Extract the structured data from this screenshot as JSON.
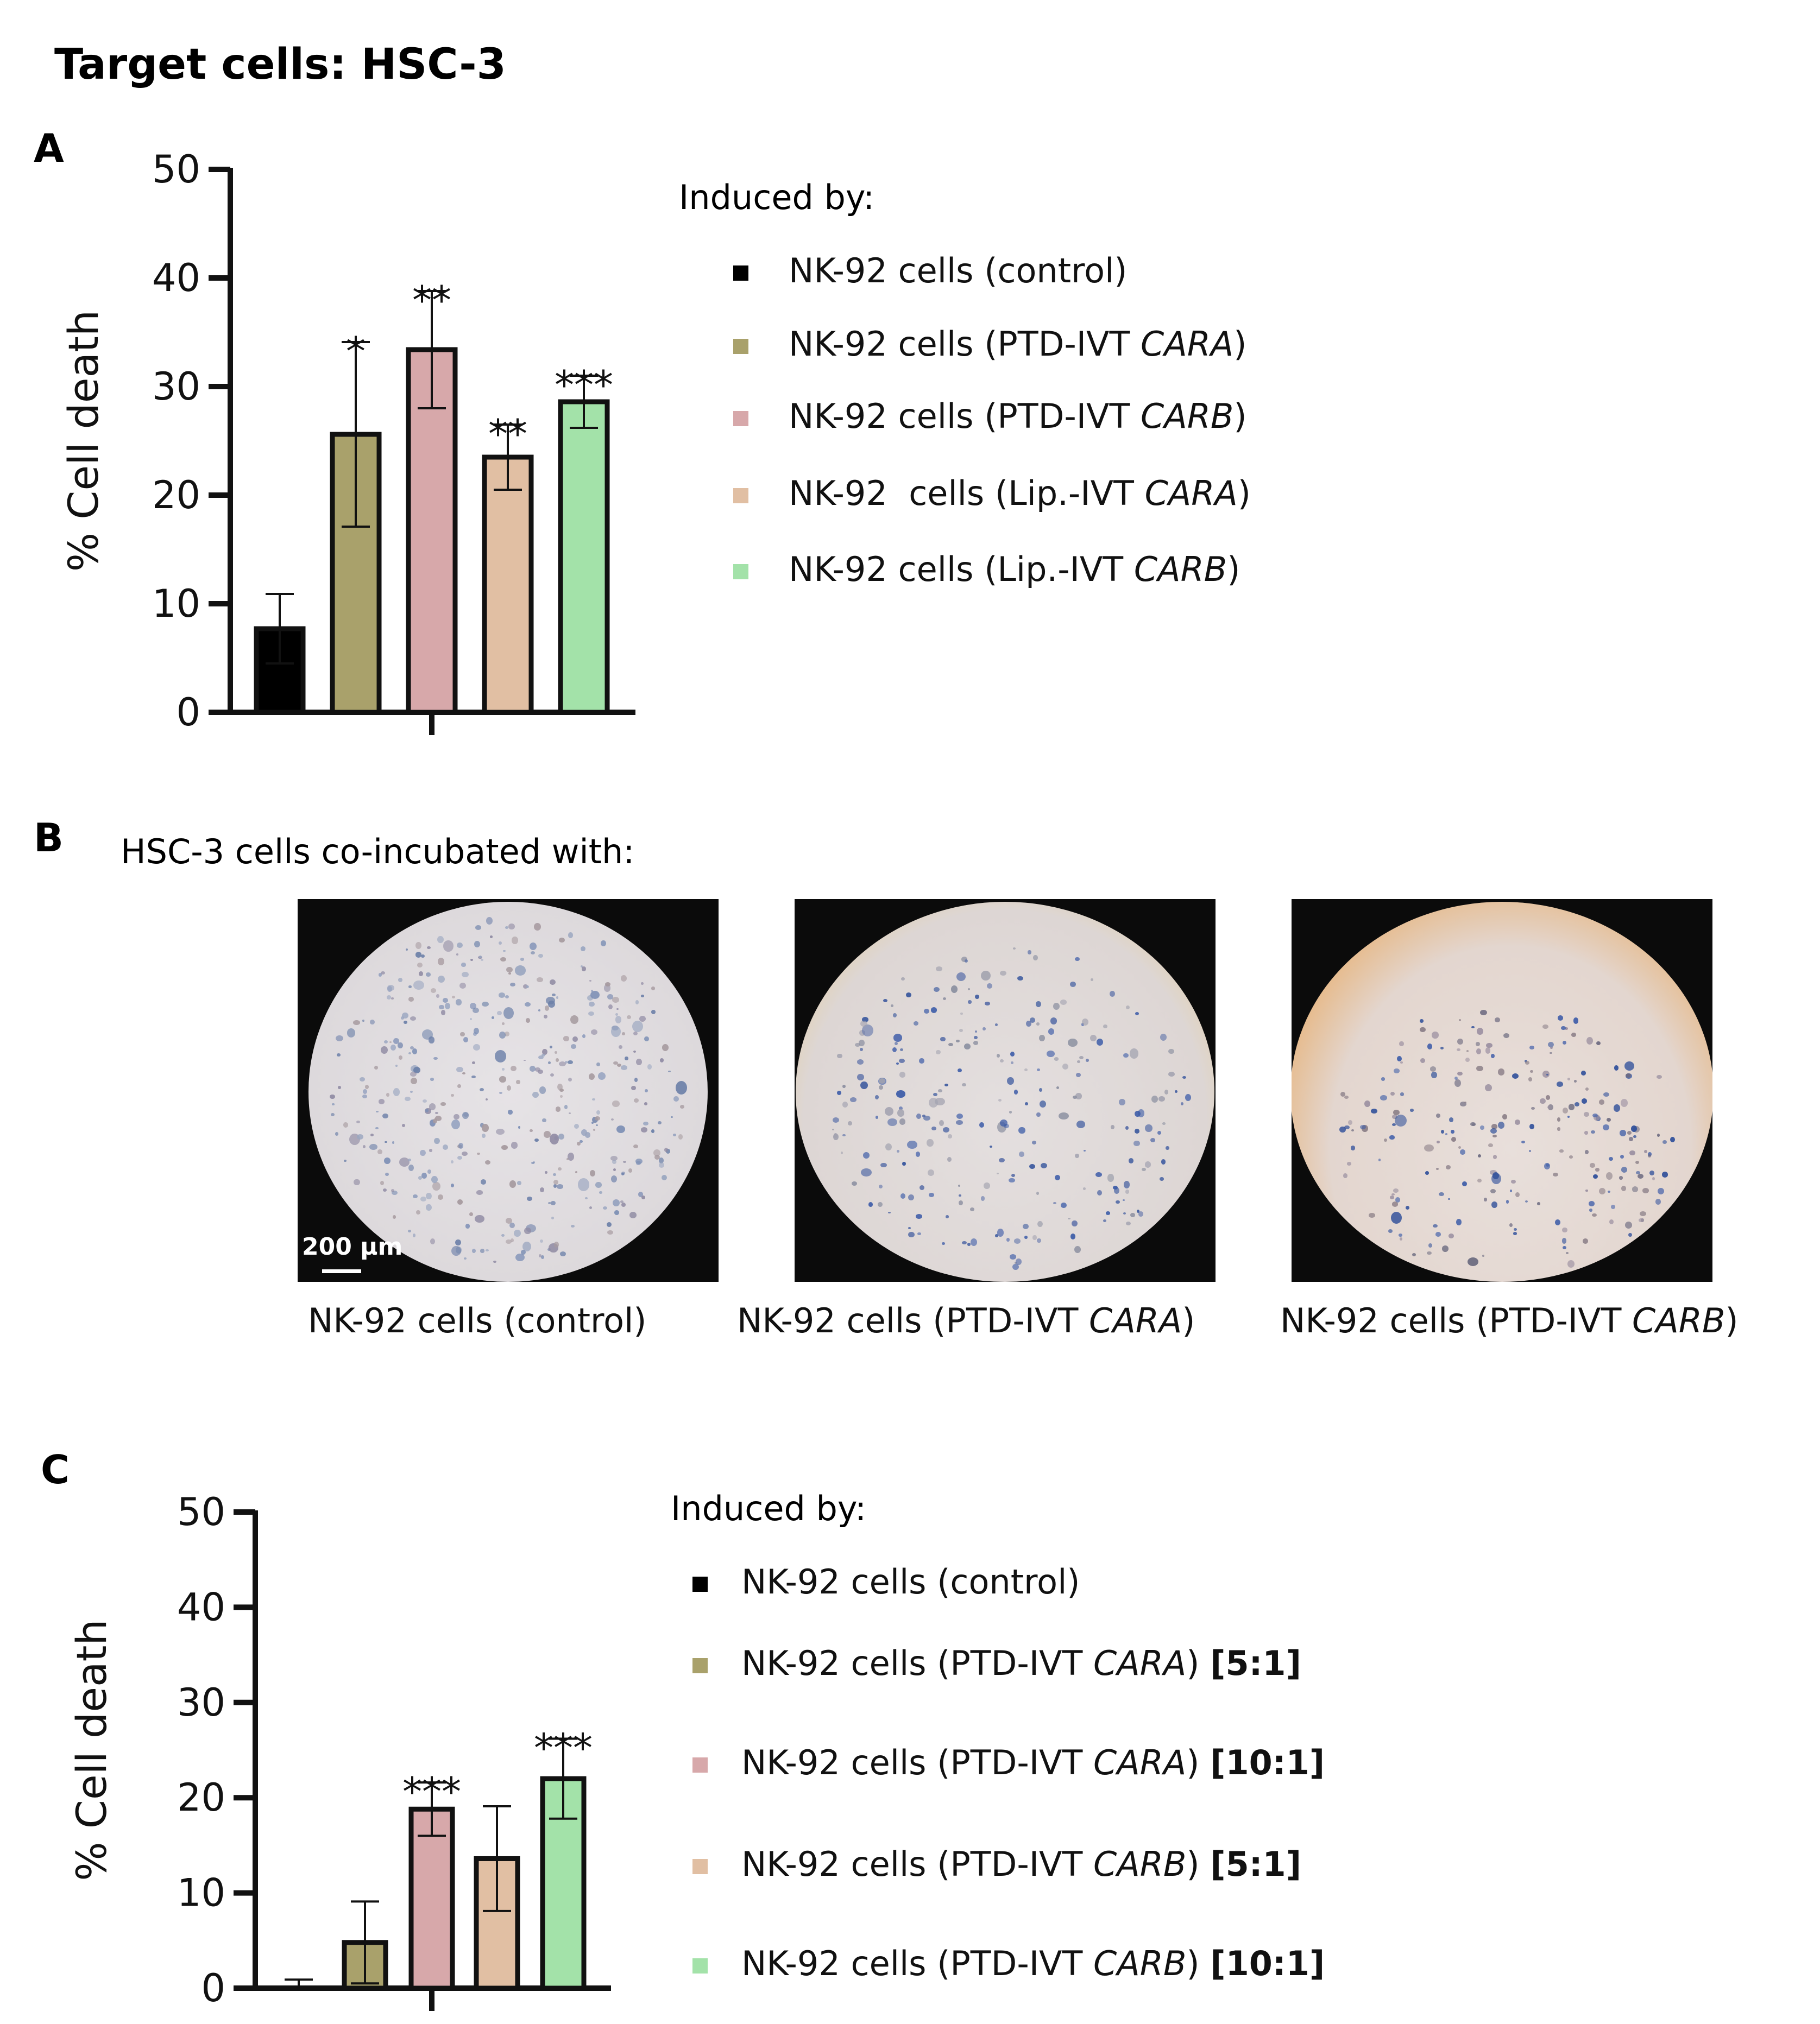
{
  "figure_title": "Target cells: HSC-3",
  "panels": {
    "A": {
      "letter": "A",
      "legend_title": "Induced by:",
      "legend": [
        {
          "text": "NK-92 cells (control)",
          "italic": "",
          "after": "",
          "bold": "",
          "color": "#000000"
        },
        {
          "text": "NK-92 cells (PTD-IVT ",
          "italic": "CARA",
          "after": ")",
          "bold": "",
          "color": "#a9a16b"
        },
        {
          "text": "NK-92 cells (PTD-IVT ",
          "italic": "CARB",
          "after": ")",
          "bold": "",
          "color": "#d7a8aa"
        },
        {
          "text": "NK-92  cells (Lip.-IVT ",
          "italic": "CARA",
          "after": ")",
          "bold": "",
          "color": "#e1bfa3"
        },
        {
          "text": "NK-92 cells (Lip.-IVT ",
          "italic": "CARB",
          "after": ")",
          "bold": "",
          "color": "#a3e2a9"
        }
      ]
    },
    "B": {
      "letter": "B",
      "subtitle": "HSC-3 cells co-incubated with:",
      "scale_bar": "200 µm",
      "captions": [
        {
          "text": "NK-92 cells (control)",
          "italic": "",
          "after": ""
        },
        {
          "text": "NK-92 cells (PTD-IVT ",
          "italic": "CARA",
          "after": ")"
        },
        {
          "text": "NK-92 cells (PTD-IVT ",
          "italic": "CARB",
          "after": ")"
        }
      ]
    },
    "C": {
      "letter": "C",
      "legend_title": "Induced by:",
      "legend": [
        {
          "text": "NK-92 cells (control)",
          "italic": "",
          "after": "",
          "bold": "",
          "color": "#000000"
        },
        {
          "text": "NK-92 cells (PTD-IVT ",
          "italic": "CARA",
          "after": ") ",
          "bold": "[5:1]",
          "color": "#a9a16b"
        },
        {
          "text": "NK-92 cells (PTD-IVT ",
          "italic": "CARA",
          "after": ") ",
          "bold": "[10:1]",
          "color": "#d7a8aa"
        },
        {
          "text": "NK-92 cells (PTD-IVT ",
          "italic": "CARB",
          "after": ") ",
          "bold": "[5:1]",
          "color": "#e1bfa3"
        },
        {
          "text": "NK-92 cells (PTD-IVT ",
          "italic": "CARB",
          "after": ") ",
          "bold": "[10:1]",
          "color": "#a3e2a9"
        }
      ]
    }
  },
  "chart_data": [
    {
      "panel": "A",
      "type": "bar",
      "ylabel": "% Cell death",
      "ylim": [
        0,
        50
      ],
      "yticks": [
        0,
        10,
        20,
        30,
        40,
        50
      ],
      "values": [
        7.7,
        25.6,
        33.4,
        23.5,
        28.6
      ],
      "errors": [
        3.2,
        8.5,
        5.4,
        3.0,
        2.4
      ],
      "significance": [
        "",
        "*",
        "**",
        "**",
        "***"
      ],
      "colors": [
        "#000000",
        "#a9a16b",
        "#d7a8aa",
        "#e1bfa3",
        "#a3e2a9"
      ]
    },
    {
      "panel": "C",
      "type": "bar",
      "ylabel": "% Cell death",
      "ylim": [
        0,
        50
      ],
      "yticks": [
        0,
        10,
        20,
        30,
        40,
        50
      ],
      "values": [
        0,
        4.8,
        18.8,
        13.6,
        22.0
      ],
      "errors": [
        0.9,
        4.3,
        2.8,
        5.5,
        4.2
      ],
      "significance": [
        "",
        "",
        "***",
        "",
        "***"
      ],
      "colors": [
        "#000000",
        "#a9a16b",
        "#d7a8aa",
        "#e1bfa3",
        "#a3e2a9"
      ]
    }
  ]
}
